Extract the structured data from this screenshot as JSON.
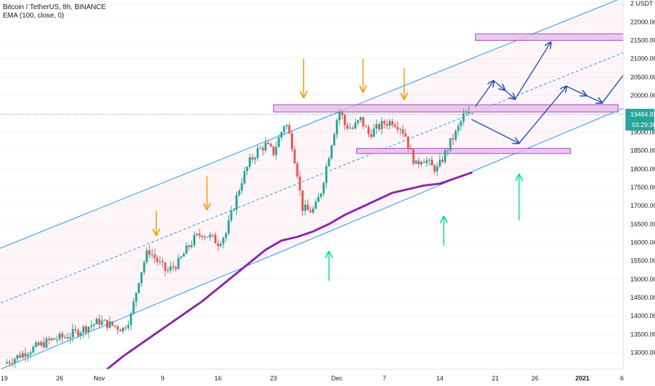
{
  "legend": {
    "title": "Bitcoin / TetherUS, 8h, BINANCE",
    "indicator": "EMA (100, close, 0)"
  },
  "chart_data": {
    "type": "candlestick",
    "price_axis": {
      "unit_label": "USDT",
      "ylim": [
        12550,
        22600
      ],
      "ticks": [
        {
          "v": 22500,
          "label": "2 USDT 0"
        },
        {
          "v": 22000,
          "label": "22000.00"
        },
        {
          "v": 21500,
          "label": "21500.00"
        },
        {
          "v": 21000,
          "label": "21000.00"
        },
        {
          "v": 20500,
          "label": "20500.00"
        },
        {
          "v": 20000,
          "label": "20000.00"
        },
        {
          "v": 19000,
          "label": "19000.00"
        },
        {
          "v": 18500,
          "label": "18500.00"
        },
        {
          "v": 18000,
          "label": "18000.00"
        },
        {
          "v": 17500,
          "label": "17500.00"
        },
        {
          "v": 17000,
          "label": "17000.00"
        },
        {
          "v": 16500,
          "label": "16500.00"
        },
        {
          "v": 16000,
          "label": "16000.00"
        },
        {
          "v": 15500,
          "label": "15500.00"
        },
        {
          "v": 15000,
          "label": "15000.00"
        },
        {
          "v": 14500,
          "label": "14500.00"
        },
        {
          "v": 14000,
          "label": "14000.00"
        },
        {
          "v": 13500,
          "label": "13500.00"
        },
        {
          "v": 13000,
          "label": "13000.00"
        }
      ]
    },
    "last_price": {
      "value": 19484.83,
      "label": "19484.83",
      "countdown": "03:29:30",
      "color": "#26a69a"
    },
    "time_axis": {
      "day_range": [
        0,
        58
      ],
      "ticks": [
        {
          "d": 0,
          "label": "19"
        },
        {
          "d": 7,
          "label": "26"
        },
        {
          "d": 12,
          "label": "Nov"
        },
        {
          "d": 20,
          "label": "9"
        },
        {
          "d": 27,
          "label": "16"
        },
        {
          "d": 34,
          "label": "23"
        },
        {
          "d": 42,
          "label": "Dec"
        },
        {
          "d": 48,
          "label": "7"
        },
        {
          "d": 55,
          "label": "14"
        },
        {
          "d": 62,
          "label": "21"
        },
        {
          "d": 67,
          "label": "26"
        },
        {
          "d": 73,
          "label": "2021"
        },
        {
          "d": 78,
          "label": "6"
        }
      ],
      "bold_labels": [
        "2021"
      ]
    },
    "close_path": [
      [
        0,
        12700
      ],
      [
        3,
        13050
      ],
      [
        6,
        13350
      ],
      [
        8,
        13450
      ],
      [
        10,
        13650
      ],
      [
        12,
        13850
      ],
      [
        13.5,
        13750
      ],
      [
        15,
        13650
      ],
      [
        16,
        14000
      ],
      [
        17,
        15000
      ],
      [
        17.7,
        15500
      ],
      [
        18.2,
        15800
      ],
      [
        19.5,
        15450
      ],
      [
        20.5,
        15200
      ],
      [
        22,
        15450
      ],
      [
        23,
        15800
      ],
      [
        24,
        16100
      ],
      [
        25,
        16250
      ],
      [
        26,
        16150
      ],
      [
        27,
        16000
      ],
      [
        28,
        16250
      ],
      [
        29,
        17000
      ],
      [
        30,
        17700
      ],
      [
        31,
        18200
      ],
      [
        32,
        18500
      ],
      [
        33,
        18650
      ],
      [
        34,
        18450
      ],
      [
        34.8,
        18900
      ],
      [
        35.5,
        19300
      ],
      [
        36.3,
        18700
      ],
      [
        37,
        17900
      ],
      [
        37.6,
        16950
      ],
      [
        38.4,
        16850
      ],
      [
        39.2,
        16900
      ],
      [
        40,
        17400
      ],
      [
        40.8,
        18200
      ],
      [
        41.4,
        18800
      ],
      [
        42,
        19350
      ],
      [
        42.4,
        19600
      ],
      [
        43,
        19200
      ],
      [
        44,
        19100
      ],
      [
        45,
        19350
      ],
      [
        46,
        18950
      ],
      [
        47,
        19100
      ],
      [
        48,
        19250
      ],
      [
        49,
        19300
      ],
      [
        50,
        19150
      ],
      [
        50.7,
        18900
      ],
      [
        51.2,
        18500
      ],
      [
        52,
        18100
      ],
      [
        52.7,
        18300
      ],
      [
        53.2,
        18250
      ],
      [
        54,
        18050
      ],
      [
        54.7,
        18000
      ],
      [
        55.5,
        18350
      ],
      [
        56.4,
        18750
      ],
      [
        57.2,
        19050
      ],
      [
        58,
        19450
      ],
      [
        58.7,
        19484.83
      ]
    ],
    "ema_100": [
      [
        13,
        12550
      ],
      [
        15,
        12900
      ],
      [
        17,
        13200
      ],
      [
        19,
        13500
      ],
      [
        21,
        13800
      ],
      [
        23,
        14100
      ],
      [
        25,
        14400
      ],
      [
        27,
        14750
      ],
      [
        29,
        15100
      ],
      [
        31,
        15450
      ],
      [
        33,
        15800
      ],
      [
        35,
        16050
      ],
      [
        37,
        16150
      ],
      [
        39,
        16300
      ],
      [
        41,
        16500
      ],
      [
        43,
        16750
      ],
      [
        45,
        16950
      ],
      [
        47,
        17150
      ],
      [
        49,
        17350
      ],
      [
        51,
        17450
      ],
      [
        53,
        17550
      ],
      [
        55,
        17600
      ],
      [
        57,
        17750
      ],
      [
        59,
        17900
      ]
    ],
    "channel": {
      "color": "#2196f3",
      "upper": [
        [
          -1,
          15800
        ],
        [
          82,
          23000
        ]
      ],
      "lower": [
        [
          -1,
          12500
        ],
        [
          82,
          20000
        ]
      ],
      "mid": [
        [
          -1,
          14300
        ],
        [
          82,
          21500
        ]
      ]
    },
    "resistance_zones": [
      {
        "d0": 34,
        "d1": 77.5,
        "low": 19550,
        "high": 19750,
        "fill": "#e1bee7",
        "stroke": "#ab47bc"
      },
      {
        "d0": 44.5,
        "d1": 71.5,
        "low": 18420,
        "high": 18560,
        "fill": "#e1bee7",
        "stroke": "#ab47bc"
      },
      {
        "d0": 59.5,
        "d1": 82,
        "low": 21500,
        "high": 21680,
        "fill": "#e1bee7",
        "stroke": "#ab47bc"
      }
    ],
    "annotations": {
      "down_arrows": [
        [
          19.2,
          16850,
          16200
        ],
        [
          25.6,
          17800,
          16900
        ],
        [
          37.8,
          21000,
          19950
        ],
        [
          45.3,
          21000,
          20100
        ],
        [
          50.5,
          20750,
          19900
        ]
      ],
      "down_color": "#ff9800",
      "up_arrows": [
        [
          41,
          14950,
          15750
        ],
        [
          55.5,
          15900,
          16700
        ],
        [
          65,
          16600,
          17850
        ]
      ],
      "up_color": "#00e676",
      "projection_path_a": [
        [
          59.5,
          19700
        ],
        [
          61.8,
          20400
        ],
        [
          63.2,
          20150
        ],
        [
          64.5,
          19900
        ],
        [
          69,
          21450
        ]
      ],
      "projection_path_b": [
        [
          59,
          19350
        ],
        [
          65,
          18700
        ],
        [
          71,
          20250
        ],
        [
          73.5,
          20000
        ],
        [
          75.5,
          19800
        ],
        [
          81.5,
          21500
        ]
      ],
      "projection_color": "#1e4fb6"
    }
  }
}
